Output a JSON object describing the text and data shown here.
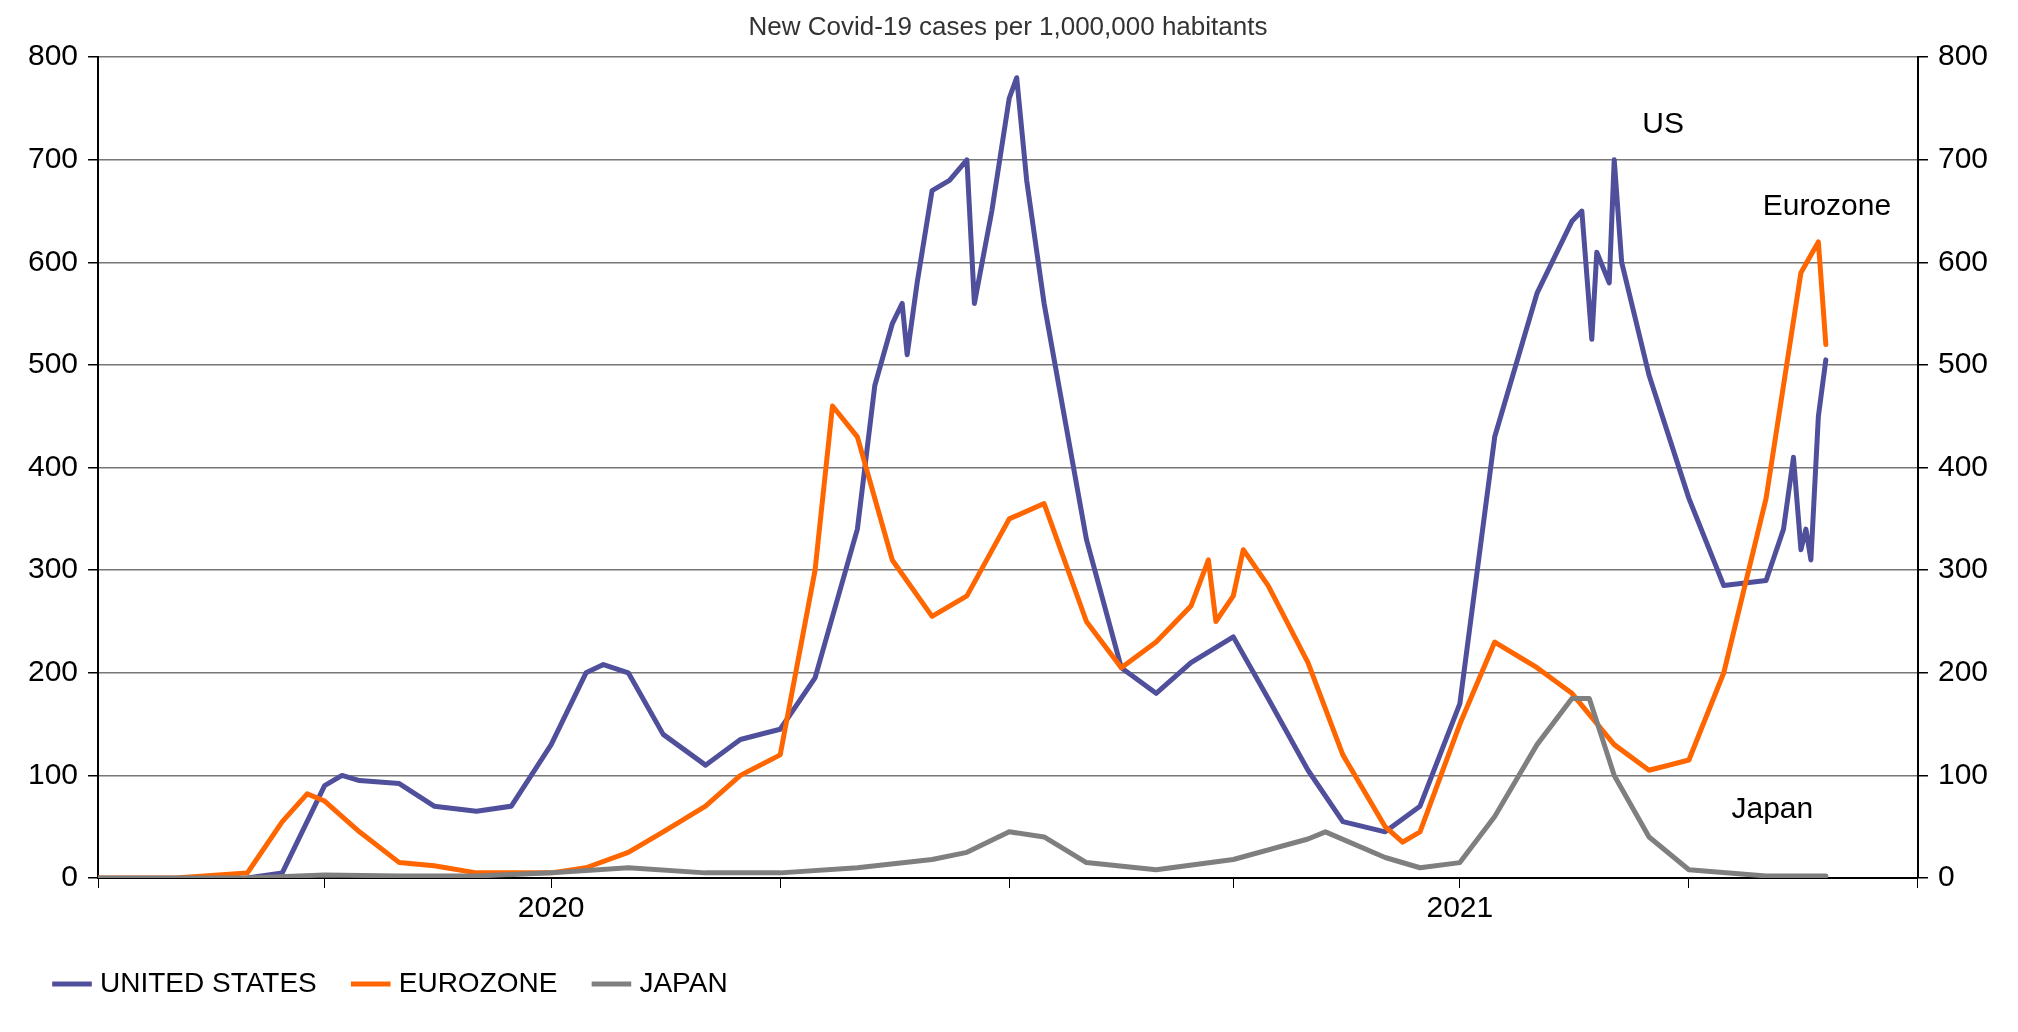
{
  "chart_data": {
    "type": "line",
    "title": "New Covid-19 cases per 1,000,000 habitants",
    "series": [
      {
        "name": "UNITED STATES",
        "color": "#4f4f9b",
        "x": [
          "2020-03-01",
          "2020-03-15",
          "2020-03-22",
          "2020-04-01",
          "2020-04-08",
          "2020-04-15",
          "2020-05-01",
          "2020-05-15",
          "2020-06-01",
          "2020-06-15",
          "2020-07-01",
          "2020-07-15",
          "2020-07-22",
          "2020-08-01",
          "2020-08-15",
          "2020-09-01",
          "2020-09-15",
          "2020-10-01",
          "2020-10-15",
          "2020-11-01",
          "2020-11-08",
          "2020-11-15",
          "2020-11-19",
          "2020-11-21",
          "2020-11-25",
          "2020-12-01",
          "2020-12-08",
          "2020-12-15",
          "2020-12-18",
          "2020-12-25",
          "2021-01-01",
          "2021-01-04",
          "2021-01-08",
          "2021-01-15",
          "2021-02-01",
          "2021-02-15",
          "2021-03-01",
          "2021-03-15",
          "2021-04-01",
          "2021-04-15",
          "2021-05-01",
          "2021-05-15",
          "2021-06-01",
          "2021-06-15",
          "2021-07-01",
          "2021-07-15",
          "2021-08-01",
          "2021-08-15",
          "2021-08-19",
          "2021-08-23",
          "2021-08-25",
          "2021-08-30",
          "2021-09-01",
          "2021-09-04",
          "2021-09-15",
          "2021-10-01",
          "2021-10-15",
          "2021-11-01",
          "2021-11-08",
          "2021-11-12",
          "2021-11-15",
          "2021-11-17",
          "2021-11-19",
          "2021-11-22",
          "2021-11-25"
        ],
        "values": [
          0,
          5,
          40,
          90,
          100,
          95,
          92,
          70,
          65,
          70,
          130,
          200,
          208,
          200,
          140,
          110,
          135,
          145,
          195,
          340,
          480,
          540,
          560,
          510,
          580,
          670,
          680,
          700,
          560,
          650,
          760,
          780,
          680,
          560,
          330,
          205,
          180,
          210,
          235,
          175,
          105,
          55,
          45,
          70,
          170,
          430,
          570,
          640,
          650,
          525,
          610,
          580,
          700,
          600,
          490,
          370,
          285,
          290,
          340,
          410,
          320,
          340,
          310,
          450,
          505
        ]
      },
      {
        "name": "EUROZONE",
        "color": "#ff6600",
        "x": [
          "2020-01-01",
          "2020-02-01",
          "2020-03-01",
          "2020-03-15",
          "2020-03-25",
          "2020-04-01",
          "2020-04-15",
          "2020-05-01",
          "2020-05-15",
          "2020-06-01",
          "2020-06-15",
          "2020-07-01",
          "2020-07-15",
          "2020-08-01",
          "2020-08-15",
          "2020-09-01",
          "2020-09-15",
          "2020-10-01",
          "2020-10-15",
          "2020-10-22",
          "2020-11-01",
          "2020-11-15",
          "2020-12-01",
          "2020-12-15",
          "2021-01-01",
          "2021-01-15",
          "2021-02-01",
          "2021-02-15",
          "2021-03-01",
          "2021-03-15",
          "2021-03-22",
          "2021-03-25",
          "2021-04-01",
          "2021-04-05",
          "2021-04-15",
          "2021-05-01",
          "2021-05-15",
          "2021-06-01",
          "2021-06-08",
          "2021-06-15",
          "2021-07-01",
          "2021-07-15",
          "2021-08-01",
          "2021-08-15",
          "2021-09-01",
          "2021-09-15",
          "2021-10-01",
          "2021-10-15",
          "2021-11-01",
          "2021-11-15",
          "2021-11-22",
          "2021-11-25"
        ],
        "values": [
          0,
          0,
          5,
          55,
          82,
          75,
          45,
          15,
          12,
          5,
          5,
          5,
          10,
          25,
          45,
          70,
          100,
          120,
          300,
          460,
          430,
          310,
          255,
          275,
          350,
          365,
          250,
          205,
          230,
          265,
          310,
          250,
          275,
          320,
          285,
          210,
          120,
          50,
          35,
          45,
          150,
          230,
          205,
          180,
          130,
          105,
          115,
          200,
          370,
          590,
          620,
          520
        ]
      },
      {
        "name": "JAPAN",
        "color": "#7f7f7f",
        "x": [
          "2020-01-01",
          "2020-03-01",
          "2020-04-01",
          "2020-05-01",
          "2020-06-01",
          "2020-07-01",
          "2020-08-01",
          "2020-09-01",
          "2020-10-01",
          "2020-11-01",
          "2020-12-01",
          "2020-12-15",
          "2021-01-01",
          "2021-01-15",
          "2021-02-01",
          "2021-03-01",
          "2021-04-01",
          "2021-05-01",
          "2021-05-08",
          "2021-06-01",
          "2021-06-15",
          "2021-07-01",
          "2021-07-15",
          "2021-08-01",
          "2021-08-15",
          "2021-08-22",
          "2021-09-01",
          "2021-09-15",
          "2021-10-01",
          "2021-11-01",
          "2021-11-25"
        ],
        "values": [
          0,
          0,
          3,
          2,
          2,
          5,
          10,
          5,
          5,
          10,
          18,
          25,
          45,
          40,
          15,
          8,
          18,
          38,
          45,
          20,
          10,
          15,
          60,
          130,
          175,
          175,
          100,
          40,
          8,
          2,
          2
        ]
      }
    ],
    "xlim": [
      "2020-01-01",
      "2022-01-01"
    ],
    "xticks": [
      {
        "value": "2020-01-01",
        "label": null
      },
      {
        "value": "2020-04-01",
        "label": null
      },
      {
        "value": "2020-07-01",
        "label": "2020"
      },
      {
        "value": "2020-10-01",
        "label": null
      },
      {
        "value": "2021-01-01",
        "label": null
      },
      {
        "value": "2021-04-01",
        "label": null
      },
      {
        "value": "2021-07-01",
        "label": "2021"
      },
      {
        "value": "2021-10-01",
        "label": null
      },
      {
        "value": "2022-01-01",
        "label": null
      }
    ],
    "ylim": [
      0,
      800
    ],
    "yticks": [
      0,
      100,
      200,
      300,
      400,
      500,
      600,
      700,
      800
    ],
    "y2lim": [
      0,
      800
    ],
    "y2ticks": [
      0,
      100,
      200,
      300,
      400,
      500,
      600,
      700,
      800
    ],
    "grid": "y",
    "legend": "bottom",
    "marker": "none",
    "line_style": "solid",
    "annotations": [
      "US",
      "Eurozone",
      "Japan"
    ]
  }
}
